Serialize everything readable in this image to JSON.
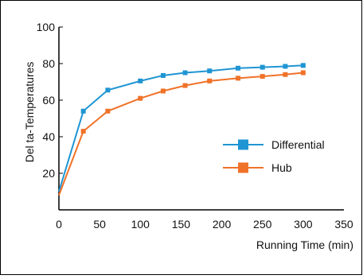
{
  "chart_data": {
    "type": "line",
    "title": "",
    "xlabel": "Running Time (min)",
    "ylabel": "Del ta-Temperatures",
    "xlim": [
      0,
      350
    ],
    "ylim": [
      0,
      100
    ],
    "xticks": [
      0,
      50,
      100,
      150,
      200,
      250,
      300,
      350
    ],
    "yticks": [
      20,
      40,
      60,
      80,
      100
    ],
    "grid": false,
    "legend_position": "right",
    "series": [
      {
        "name": "Differential",
        "color": "#1f95d3",
        "x": [
          0,
          30,
          60,
          100,
          128,
          155,
          185,
          220,
          250,
          278,
          300
        ],
        "y": [
          10,
          54,
          65.5,
          70.5,
          73.5,
          75,
          76,
          77.5,
          78,
          78.5,
          79
        ]
      },
      {
        "name": "Hub",
        "color": "#f07228",
        "x": [
          0,
          30,
          60,
          100,
          128,
          155,
          185,
          220,
          250,
          278,
          300
        ],
        "y": [
          8,
          43,
          54,
          61,
          65,
          68,
          70.5,
          72,
          73,
          74,
          75
        ]
      }
    ]
  }
}
